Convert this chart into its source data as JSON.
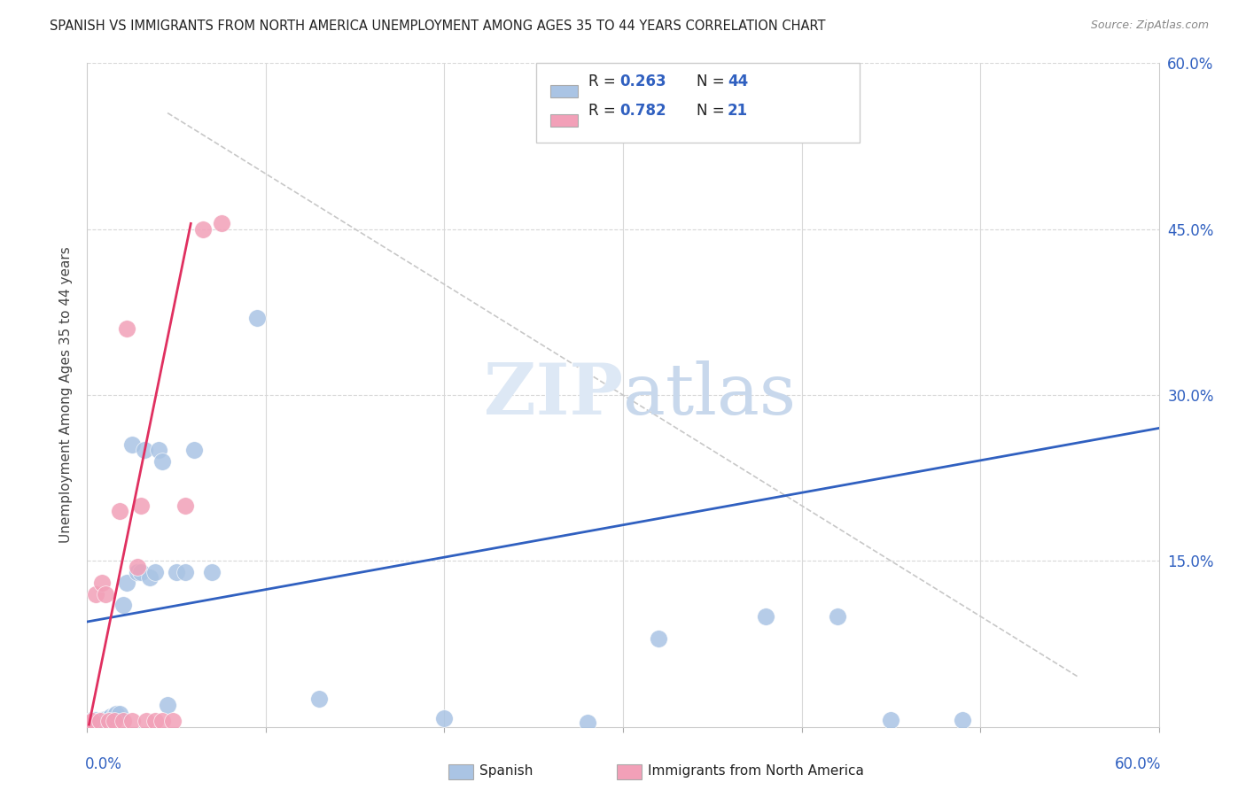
{
  "title": "SPANISH VS IMMIGRANTS FROM NORTH AMERICA UNEMPLOYMENT AMONG AGES 35 TO 44 YEARS CORRELATION CHART",
  "source": "Source: ZipAtlas.com",
  "ylabel": "Unemployment Among Ages 35 to 44 years",
  "xlim": [
    0.0,
    0.6
  ],
  "ylim": [
    0.0,
    0.6
  ],
  "watermark": "ZIPatlas",
  "legend_r1": "0.263",
  "legend_n1": "44",
  "legend_r2": "0.782",
  "legend_n2": "21",
  "spanish_color": "#aac4e4",
  "immigrant_color": "#f2a0b8",
  "line_spanish_color": "#3060c0",
  "line_immigrant_color": "#e03060",
  "dashed_line_color": "#c8c8c8",
  "spanish_x": [
    0.001,
    0.002,
    0.002,
    0.003,
    0.003,
    0.004,
    0.004,
    0.005,
    0.005,
    0.006,
    0.007,
    0.008,
    0.009,
    0.01,
    0.011,
    0.012,
    0.013,
    0.015,
    0.016,
    0.018,
    0.02,
    0.022,
    0.025,
    0.028,
    0.03,
    0.032,
    0.035,
    0.038,
    0.04,
    0.042,
    0.045,
    0.05,
    0.055,
    0.06,
    0.07,
    0.095,
    0.13,
    0.2,
    0.28,
    0.32,
    0.38,
    0.42,
    0.45,
    0.49
  ],
  "spanish_y": [
    0.003,
    0.004,
    0.005,
    0.003,
    0.006,
    0.004,
    0.005,
    0.004,
    0.006,
    0.005,
    0.004,
    0.006,
    0.005,
    0.007,
    0.006,
    0.008,
    0.009,
    0.01,
    0.012,
    0.012,
    0.11,
    0.13,
    0.255,
    0.14,
    0.14,
    0.25,
    0.135,
    0.14,
    0.25,
    0.24,
    0.02,
    0.14,
    0.14,
    0.25,
    0.14,
    0.37,
    0.025,
    0.008,
    0.004,
    0.08,
    0.1,
    0.1,
    0.006,
    0.006
  ],
  "immigrant_x": [
    0.001,
    0.003,
    0.005,
    0.007,
    0.008,
    0.01,
    0.012,
    0.015,
    0.018,
    0.02,
    0.022,
    0.025,
    0.028,
    0.03,
    0.033,
    0.038,
    0.042,
    0.048,
    0.055,
    0.065,
    0.075
  ],
  "immigrant_y": [
    0.004,
    0.005,
    0.12,
    0.005,
    0.13,
    0.12,
    0.005,
    0.005,
    0.195,
    0.005,
    0.36,
    0.005,
    0.145,
    0.2,
    0.005,
    0.005,
    0.005,
    0.005,
    0.2,
    0.45,
    0.455
  ],
  "blue_line_x0": 0.0,
  "blue_line_y0": 0.095,
  "blue_line_x1": 0.6,
  "blue_line_y1": 0.27,
  "pink_line_x0": 0.001,
  "pink_line_y0": 0.002,
  "pink_line_x1": 0.058,
  "pink_line_y1": 0.455,
  "dash_line_x0": 0.045,
  "dash_line_y0": 0.555,
  "dash_line_x1": 0.555,
  "dash_line_y1": 0.045
}
